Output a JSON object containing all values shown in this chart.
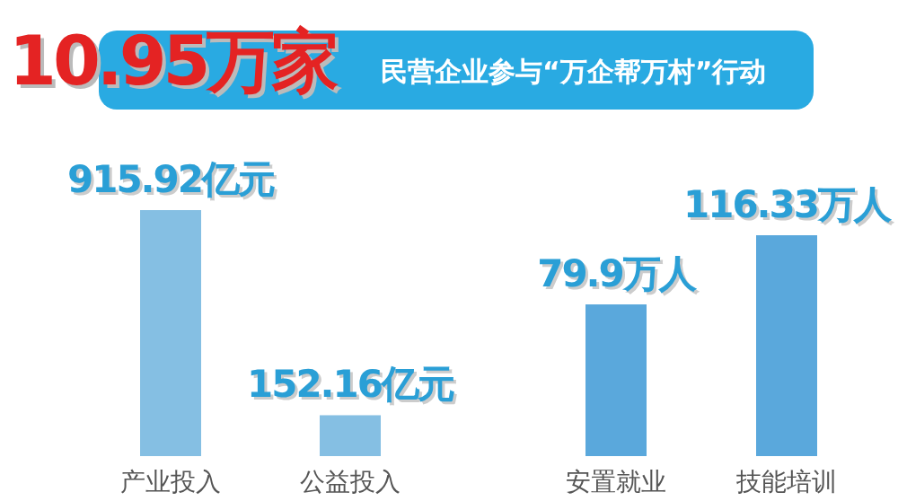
{
  "chart_data": [
    {
      "type": "bar",
      "title": "10.95万家",
      "categories": [
        "产业投入",
        "公益投入"
      ],
      "values": [
        915.92,
        152.16
      ],
      "value_labels": [
        "915.92亿元",
        "152.16亿元"
      ],
      "color": "#85bfe3"
    },
    {
      "type": "bar",
      "subtitle": "民营企业参与“万企帮万村”行动",
      "categories": [
        "安置就业",
        "技能培训"
      ],
      "values": [
        79.9,
        116.33
      ],
      "value_labels": [
        "79.9万人",
        "116.33万人"
      ],
      "color": "#5aa8dc"
    }
  ]
}
